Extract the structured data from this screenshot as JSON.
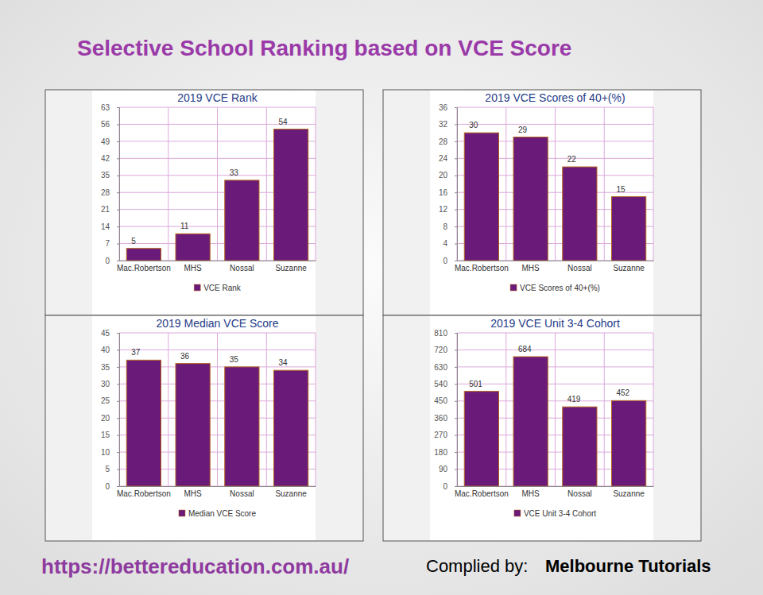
{
  "page": {
    "title": "Selective School Ranking based on VCE Score",
    "footer_url": "https://bettereducation.com.au/",
    "footer_credit_label": "Complied by:",
    "footer_credit_name": "Melbourne Tutorials"
  },
  "chart_data": [
    {
      "type": "bar",
      "title": "2019 VCE Rank",
      "categories": [
        "Mac.Robertson",
        "MHS",
        "Nossal",
        "Suzanne"
      ],
      "series": [
        {
          "name": "VCE Rank",
          "color": "#6a1b7a",
          "values": [
            5,
            11,
            33,
            54
          ]
        }
      ],
      "ylim": [
        0,
        63
      ],
      "yticks": [
        0,
        7,
        14,
        21,
        28,
        35,
        42,
        49,
        56,
        63
      ],
      "grid": true,
      "legend": "bottom",
      "data_labels": true
    },
    {
      "type": "bar",
      "title": "2019 VCE Scores of 40+(%)",
      "categories": [
        "Mac.Robertson",
        "MHS",
        "Nossal",
        "Suzanne"
      ],
      "series": [
        {
          "name": "VCE Scores of 40+(%)",
          "color": "#6a1b7a",
          "values": [
            30,
            29,
            22,
            15
          ]
        }
      ],
      "ylim": [
        0,
        36
      ],
      "yticks": [
        0,
        4,
        8,
        12,
        16,
        20,
        24,
        28,
        32,
        36
      ],
      "grid": true,
      "legend": "bottom",
      "data_labels": true
    },
    {
      "type": "bar",
      "title": "2019 Median VCE Score",
      "categories": [
        "Mac.Robertson",
        "MHS",
        "Nossal",
        "Suzanne"
      ],
      "series": [
        {
          "name": "Median VCE Score",
          "color": "#6a1b7a",
          "values": [
            37,
            36,
            35,
            34
          ]
        }
      ],
      "ylim": [
        0,
        45
      ],
      "yticks": [
        0,
        5,
        10,
        15,
        20,
        25,
        30,
        35,
        40,
        45
      ],
      "grid": true,
      "legend": "bottom",
      "data_labels": true
    },
    {
      "type": "bar",
      "title": "2019 VCE Unit 3-4 Cohort",
      "categories": [
        "Mac.Robertson",
        "MHS",
        "Nossal",
        "Suzanne"
      ],
      "series": [
        {
          "name": "VCE Unit 3-4 Cohort",
          "color": "#6a1b7a",
          "values": [
            501,
            684,
            419,
            452
          ]
        }
      ],
      "ylim": [
        0,
        810
      ],
      "yticks": [
        0,
        90,
        180,
        270,
        360,
        450,
        540,
        630,
        720,
        810
      ],
      "grid": true,
      "legend": "bottom",
      "data_labels": true
    }
  ]
}
